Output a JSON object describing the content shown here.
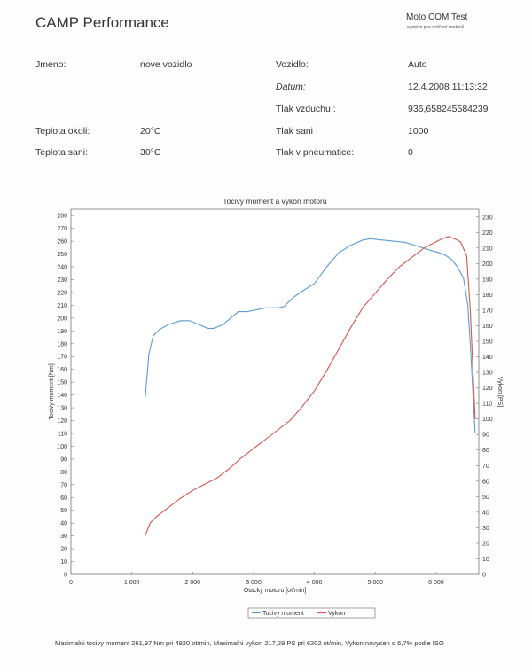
{
  "header": {
    "brand": "CAMP Performance",
    "test_title": "Moto COM Test",
    "test_subtitle": "systém pro měření motorů"
  },
  "info": {
    "jmeno_label": "Jmeno:",
    "jmeno_value": "nove vozidlo",
    "vozidlo_label": "Vozidlo:",
    "vozidlo_value": "Auto",
    "datum_label": "Datum:",
    "datum_value": "12.4.2008 11:13:32",
    "tlak_vzduchu_label": "Tlak vzduchu :",
    "tlak_vzduchu_value": "936,658245584239",
    "teplota_okoli_label": "Teplota okoli:",
    "teplota_okoli_value": "20°C",
    "tlak_sani_label": "Tlak sani :",
    "tlak_sani_value": "1000",
    "teplota_sani_label": "Teplota sani:",
    "teplota_sani_value": "30°C",
    "tlak_pneumatice_label": "Tlak v pneumatice:",
    "tlak_pneumatice_value": "0"
  },
  "summary": "Maximalni tocivy moment 261,97 Nm pri 4920 ot/min,  Maximalni vykon 217,29 PS pri 6202 ot/min,  Vykon navysen o 6,7% podle ISO",
  "chart_data": {
    "type": "line",
    "title": "Tocivy moment a vykon motoru",
    "xlabel": "Otacky motoru [ot/min]",
    "ylabel": "Tocivy moment [Nm]",
    "y2label": "Vykon [PS]",
    "xlim": [
      0,
      6700
    ],
    "ylim": [
      0,
      285
    ],
    "y2lim": [
      0,
      235
    ],
    "x_ticks": [
      0,
      1000,
      2000,
      3000,
      4000,
      5000,
      6000
    ],
    "x_tick_labels": [
      "0",
      "1 000",
      "2 000",
      "3 000",
      "4 000",
      "5 000",
      "6 000"
    ],
    "y_ticks": [
      0,
      10,
      20,
      30,
      40,
      50,
      60,
      70,
      80,
      90,
      100,
      110,
      120,
      130,
      140,
      150,
      160,
      170,
      180,
      190,
      200,
      210,
      220,
      230,
      240,
      250,
      260,
      270,
      280
    ],
    "y2_ticks": [
      0,
      10,
      20,
      30,
      40,
      50,
      60,
      70,
      80,
      90,
      100,
      110,
      120,
      130,
      140,
      150,
      160,
      170,
      180,
      190,
      200,
      210,
      220,
      230
    ],
    "grid": false,
    "legend_position": "bottom",
    "series": [
      {
        "name": "Tocivy moment",
        "axis": "left",
        "color": "#5b9bd5",
        "x": [
          1220,
          1280,
          1350,
          1450,
          1600,
          1800,
          1950,
          2100,
          2250,
          2350,
          2500,
          2600,
          2750,
          2900,
          3000,
          3200,
          3400,
          3500,
          3650,
          3800,
          4000,
          4200,
          4400,
          4600,
          4800,
          4920,
          5100,
          5300,
          5500,
          5700,
          5900,
          6050,
          6150,
          6250,
          6350,
          6450,
          6520,
          6560,
          6600,
          6640
        ],
        "values": [
          138,
          172,
          186,
          191,
          195,
          198,
          198,
          195,
          192,
          192,
          195,
          199,
          205,
          205,
          206,
          208,
          208,
          209,
          216,
          221,
          227,
          240,
          251,
          257,
          261,
          261.97,
          261,
          260,
          259,
          256,
          253,
          251,
          249,
          246,
          240,
          231,
          210,
          180,
          145,
          110
        ]
      },
      {
        "name": "Vykon",
        "axis": "right",
        "color": "#d9534f",
        "x": [
          1220,
          1300,
          1400,
          1600,
          1800,
          2000,
          2200,
          2400,
          2600,
          2800,
          3000,
          3200,
          3400,
          3600,
          3800,
          4000,
          4200,
          4400,
          4600,
          4800,
          5000,
          5200,
          5400,
          5600,
          5800,
          6000,
          6100,
          6202,
          6300,
          6400,
          6500,
          6560,
          6600,
          6640
        ],
        "values": [
          25,
          33,
          37,
          43,
          49,
          54,
          58,
          62,
          68,
          75,
          81,
          87,
          93,
          99,
          108,
          118,
          131,
          145,
          159,
          172,
          181,
          190,
          198,
          204,
          210,
          214,
          216,
          217.29,
          216,
          214,
          205,
          170,
          135,
          100
        ]
      }
    ]
  }
}
